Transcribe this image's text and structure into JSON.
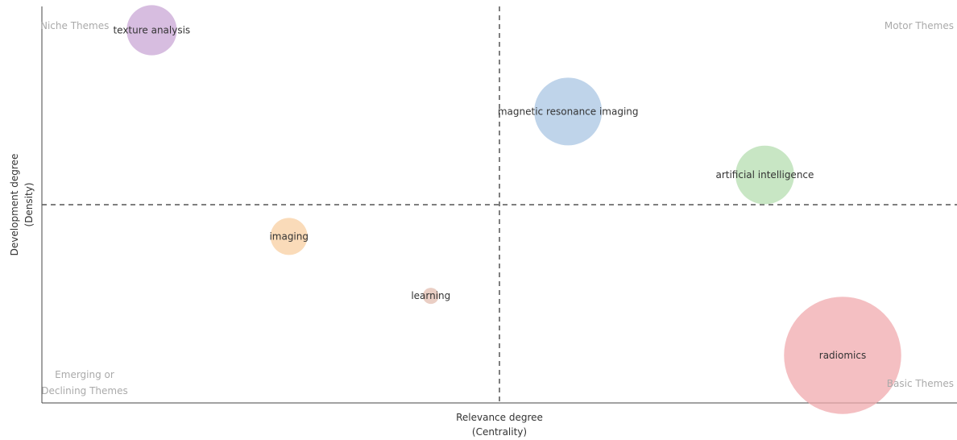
{
  "colors": {
    "axis": "#444444",
    "divider": "#555555",
    "quadrant_text": "#aaaaaa",
    "label_text": "#333333"
  },
  "chart_data": {
    "type": "scatter",
    "title": "",
    "xlabel_lines": [
      "Relevance degree",
      "(Centrality)"
    ],
    "ylabel_lines": [
      "Development degree",
      "(Density)"
    ],
    "xlim": [
      0,
      1
    ],
    "ylim": [
      0,
      1
    ],
    "x_divider": 0.5,
    "y_divider": 0.5,
    "quadrants": {
      "niche": "Niche Themes",
      "motor": "Motor Themes",
      "emerging_lines": [
        "Emerging or",
        "Declining Themes"
      ],
      "basic": "Basic Themes"
    },
    "points": [
      {
        "label": "texture analysis",
        "x": 0.12,
        "y": 0.94,
        "size": 0.55,
        "color": "#c9a7d6"
      },
      {
        "label": "magnetic resonance imaging",
        "x": 0.575,
        "y": 0.735,
        "size": 1.0,
        "color": "#a9c6e3"
      },
      {
        "label": "artificial intelligence",
        "x": 0.79,
        "y": 0.575,
        "size": 0.75,
        "color": "#b6ddb0"
      },
      {
        "label": "imaging",
        "x": 0.27,
        "y": 0.42,
        "size": 0.3,
        "color": "#f8cfa1"
      },
      {
        "label": "learning",
        "x": 0.425,
        "y": 0.27,
        "size": 0.05,
        "color": "#e3bdb0"
      },
      {
        "label": "radiomics",
        "x": 0.875,
        "y": 0.12,
        "size": 3.0,
        "color": "#f0a9ae"
      }
    ]
  }
}
